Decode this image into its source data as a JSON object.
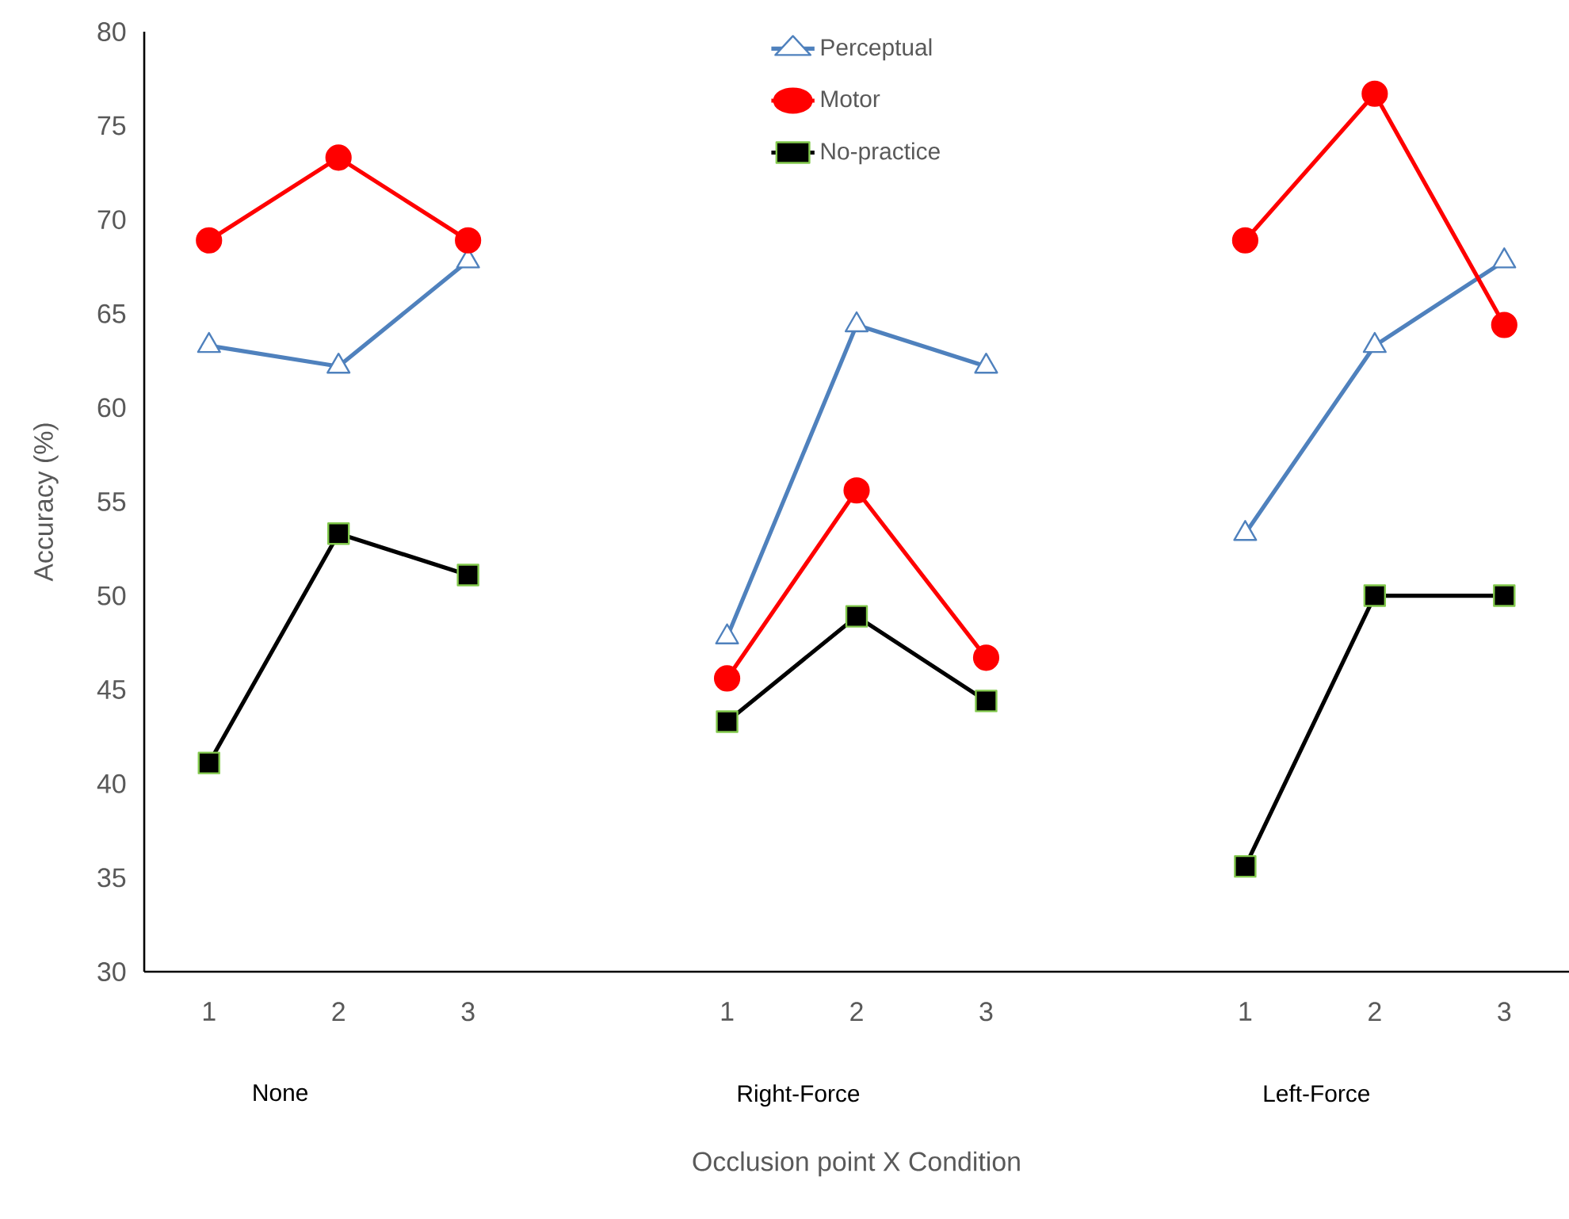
{
  "chart_data": {
    "type": "line",
    "xlabel": "Occlusion point X Condition",
    "ylabel": "Accuracy  (%)",
    "categories": [
      "1",
      "2",
      "3",
      null,
      "1",
      "2",
      "3",
      null,
      "1",
      "2",
      "3"
    ],
    "annotations": [
      "None",
      "Right-Force",
      "Left-Force"
    ],
    "series": [
      {
        "name": "Perceptual",
        "color": "#4f81bd",
        "marker": "triangle",
        "values": [
          63.3,
          62.2,
          67.8,
          null,
          47.8,
          64.4,
          62.2,
          null,
          53.3,
          63.3,
          67.8
        ]
      },
      {
        "name": "Motor",
        "color": "#ff0000",
        "marker": "circle",
        "values": [
          68.9,
          73.3,
          68.9,
          null,
          45.6,
          55.6,
          46.7,
          null,
          68.9,
          76.7,
          64.4
        ]
      },
      {
        "name": "No-practice",
        "color": "#000000",
        "marker": "square",
        "values": [
          41.1,
          53.3,
          51.1,
          null,
          43.3,
          48.9,
          44.4,
          null,
          35.6,
          50.0,
          50.0
        ]
      }
    ],
    "ylim": [
      30,
      80
    ],
    "yticks": [
      30,
      35,
      40,
      45,
      50,
      55,
      60,
      65,
      70,
      75,
      80
    ],
    "grid": false,
    "legend": "top",
    "line_style": "solid"
  }
}
